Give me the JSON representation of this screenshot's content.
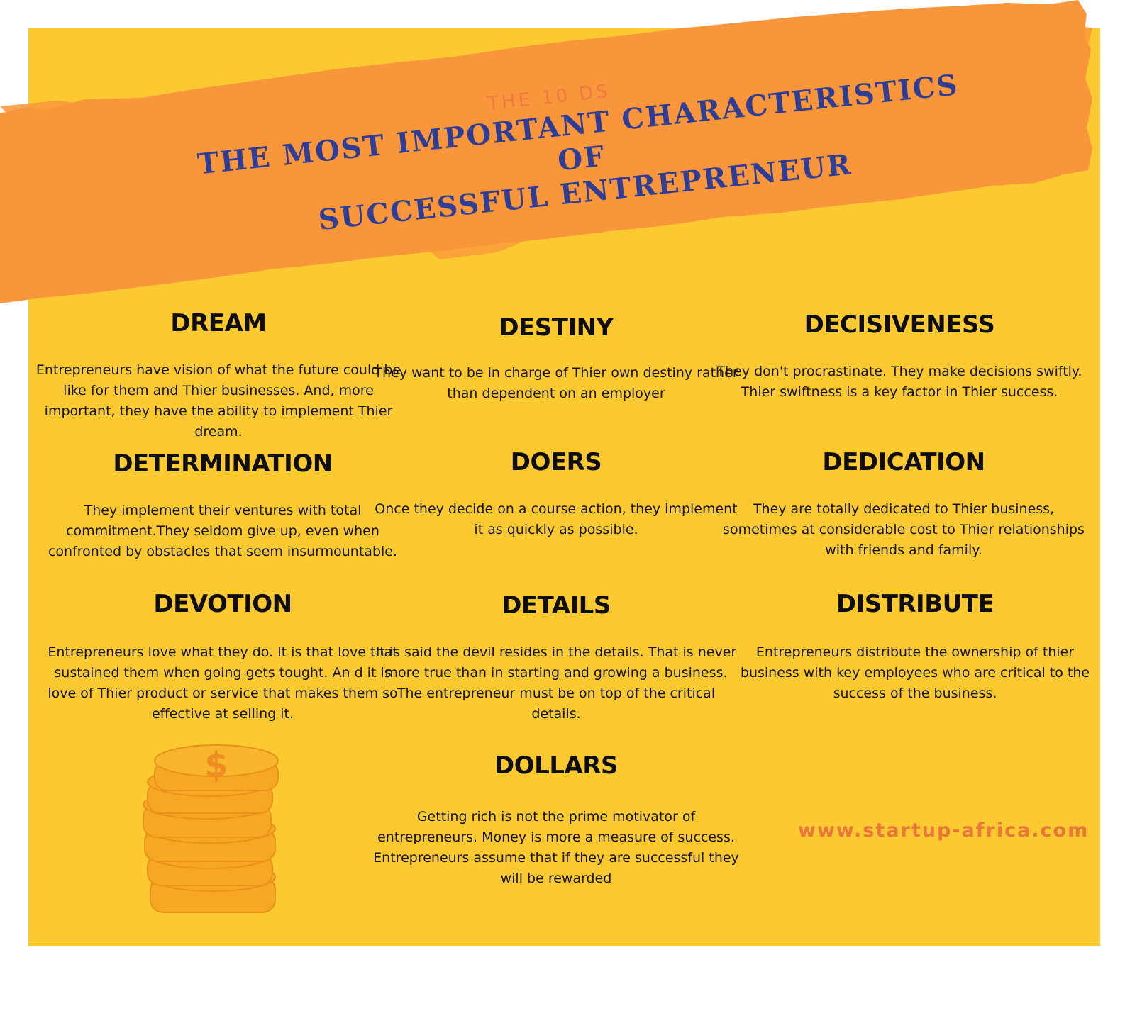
{
  "header": {
    "subtitle": "THE 10 DS",
    "title_line1": "THE MOST IMPORTANT CHARACTERISTICS OF",
    "title_line2": "SUCCESSFUL ENTREPRENEUR"
  },
  "items": [
    {
      "heading": "DREAM",
      "body": "Entrepreneurs have vision of what the future could be like for them and Thier businesses. And, more important, they have the ability to implement Thier dream."
    },
    {
      "heading": "DESTINY",
      "body": "They want to be in charge of Thier own destiny rather than dependent on an employer"
    },
    {
      "heading": "DECISIVENESS",
      "body": "They don't procrastinate. They make decisions swiftly. Thier swiftness is a key factor in Thier success."
    },
    {
      "heading": "DETERMINATION",
      "body": "They implement their ventures with total commitment.They seldom give up, even when confronted by obstacles that seem insurmountable."
    },
    {
      "heading": "DOERS",
      "body": "Once they decide on a course action, they implement it as quickly as possible."
    },
    {
      "heading": "DEDICATION",
      "body": "They are totally dedicated to Thier business, sometimes at considerable cost to Thier relationships with friends and family."
    },
    {
      "heading": "DEVOTION",
      "body": "Entrepreneurs love what they do. It is that love that sustained them when going gets tought. An d it is love of Thier product or service that makes them so effective at selling it."
    },
    {
      "heading": "DETAILS",
      "body": "It is said the devil resides in the details. That is never more true than in starting and growing a business. The entrepreneur must be on top of the critical details."
    },
    {
      "heading": "DISTRIBUTE",
      "body": "Entrepreneurs distribute the ownership of thier business with key employees who are critical to the success of the business."
    },
    {
      "heading": "DOLLARS",
      "body": "Getting rich is not the prime motivator of entrepreneurs. Money is more a measure of success. Entrepreneurs assume that if they are successful they will be rewarded"
    }
  ],
  "footer": {
    "url": "www.startup-africa.com"
  },
  "decor": {
    "coin_symbol": "$",
    "coins_icon": "coin-stack-icon"
  },
  "colors": {
    "background": "#FCC931",
    "brush": "#F9963B",
    "title": "#2F3E94",
    "subtitle": "#F07A40",
    "url": "#E9773A",
    "coin": "#F6A723"
  }
}
